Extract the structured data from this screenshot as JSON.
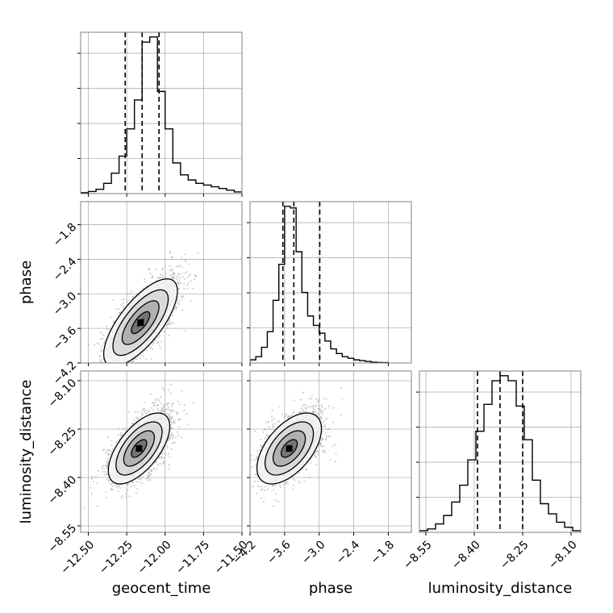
{
  "chart_data": {
    "type": "corner",
    "parameters": [
      "geocent_time",
      "phase",
      "luminosity_distance"
    ],
    "ranges": {
      "geocent_time": [
        -12.55,
        -11.5
      ],
      "phase": [
        -4.2,
        -1.4
      ],
      "luminosity_distance": [
        -8.57,
        -8.07
      ]
    },
    "ticks": {
      "geocent_time": {
        "values": [
          -12.5,
          -12.25,
          -12.0,
          -11.75,
          -11.5
        ],
        "labels": [
          "−12.50",
          "−12.25",
          "−12.00",
          "−11.75",
          "−11.50"
        ]
      },
      "phase": {
        "values": [
          -4.2,
          -3.6,
          -3.0,
          -2.4,
          -1.8
        ],
        "labels": [
          "−4.2",
          "−3.6",
          "−3.0",
          "−2.4",
          "−1.8"
        ]
      },
      "luminosity_distance": {
        "values": [
          -8.55,
          -8.4,
          -8.25,
          -8.1
        ],
        "labels": [
          "−8.55",
          "−8.40",
          "−8.25",
          "−8.10"
        ]
      }
    },
    "grid": true,
    "histograms": {
      "geocent_time": {
        "edges": [
          -12.55,
          -12.5,
          -12.45,
          -12.4,
          -12.35,
          -12.3,
          -12.25,
          -12.2,
          -12.15,
          -12.1,
          -12.05,
          -12.0,
          -11.95,
          -11.9,
          -11.85,
          -11.8,
          -11.75,
          -11.7,
          -11.65,
          -11.6,
          -11.55,
          -11.5
        ],
        "counts": [
          0.5,
          1.2,
          2.5,
          6,
          12,
          22,
          38,
          55,
          89,
          92,
          60,
          38,
          18,
          11,
          8,
          6,
          5,
          4,
          3,
          2,
          1
        ],
        "quantiles": [
          -12.26,
          -12.15,
          -12.04
        ]
      },
      "phase": {
        "edges": [
          -4.2,
          -4.1,
          -4.0,
          -3.9,
          -3.8,
          -3.7,
          -3.6,
          -3.5,
          -3.4,
          -3.3,
          -3.2,
          -3.1,
          -3.0,
          -2.9,
          -2.8,
          -2.7,
          -2.6,
          -2.5,
          -2.4,
          -2.3,
          -2.2,
          -2.1,
          -2.0,
          -1.9,
          -1.8
        ],
        "counts": [
          2,
          4,
          10,
          20,
          40,
          63,
          100,
          99,
          71,
          45,
          30,
          24,
          19,
          14,
          9,
          6,
          4,
          3,
          2,
          1.5,
          1,
          0.5,
          0.3,
          0.2
        ],
        "quantiles": [
          -3.63,
          -3.44,
          -2.99
        ]
      },
      "luminosity_distance": {
        "edges": [
          -8.57,
          -8.545,
          -8.52,
          -8.495,
          -8.47,
          -8.445,
          -8.42,
          -8.395,
          -8.37,
          -8.345,
          -8.32,
          -8.295,
          -8.27,
          -8.245,
          -8.22,
          -8.195,
          -8.17,
          -8.145,
          -8.12,
          -8.095,
          -8.07
        ],
        "counts": [
          1,
          2,
          5,
          10,
          18,
          28,
          43,
          60,
          76,
          90,
          93,
          90,
          75,
          55,
          31,
          17,
          11,
          6,
          3,
          1
        ],
        "quantiles": [
          -8.39,
          -8.32,
          -8.25
        ]
      }
    },
    "correlations": {
      "phase|geocent_time": {
        "mean": [
          -12.16,
          -3.5
        ],
        "sd": [
          0.12,
          0.38
        ],
        "rho": 0.72
      },
      "luminosity_distance|geocent_time": {
        "mean": [
          -12.17,
          -8.31
        ],
        "sd": [
          0.1,
          0.055
        ],
        "rho": 0.62
      },
      "luminosity_distance|phase": {
        "mean": [
          -3.52,
          -8.31
        ],
        "sd": [
          0.28,
          0.055
        ],
        "rho": 0.55
      }
    },
    "samples_per_panel": 1800,
    "contour_levels": [
      "0.5 sigma",
      "1 sigma",
      "1.5 sigma",
      "2 sigma"
    ],
    "colors": {
      "hist": "#000000",
      "points": "#999999",
      "grid": "#b0b0b0",
      "frame": "#808080"
    }
  }
}
